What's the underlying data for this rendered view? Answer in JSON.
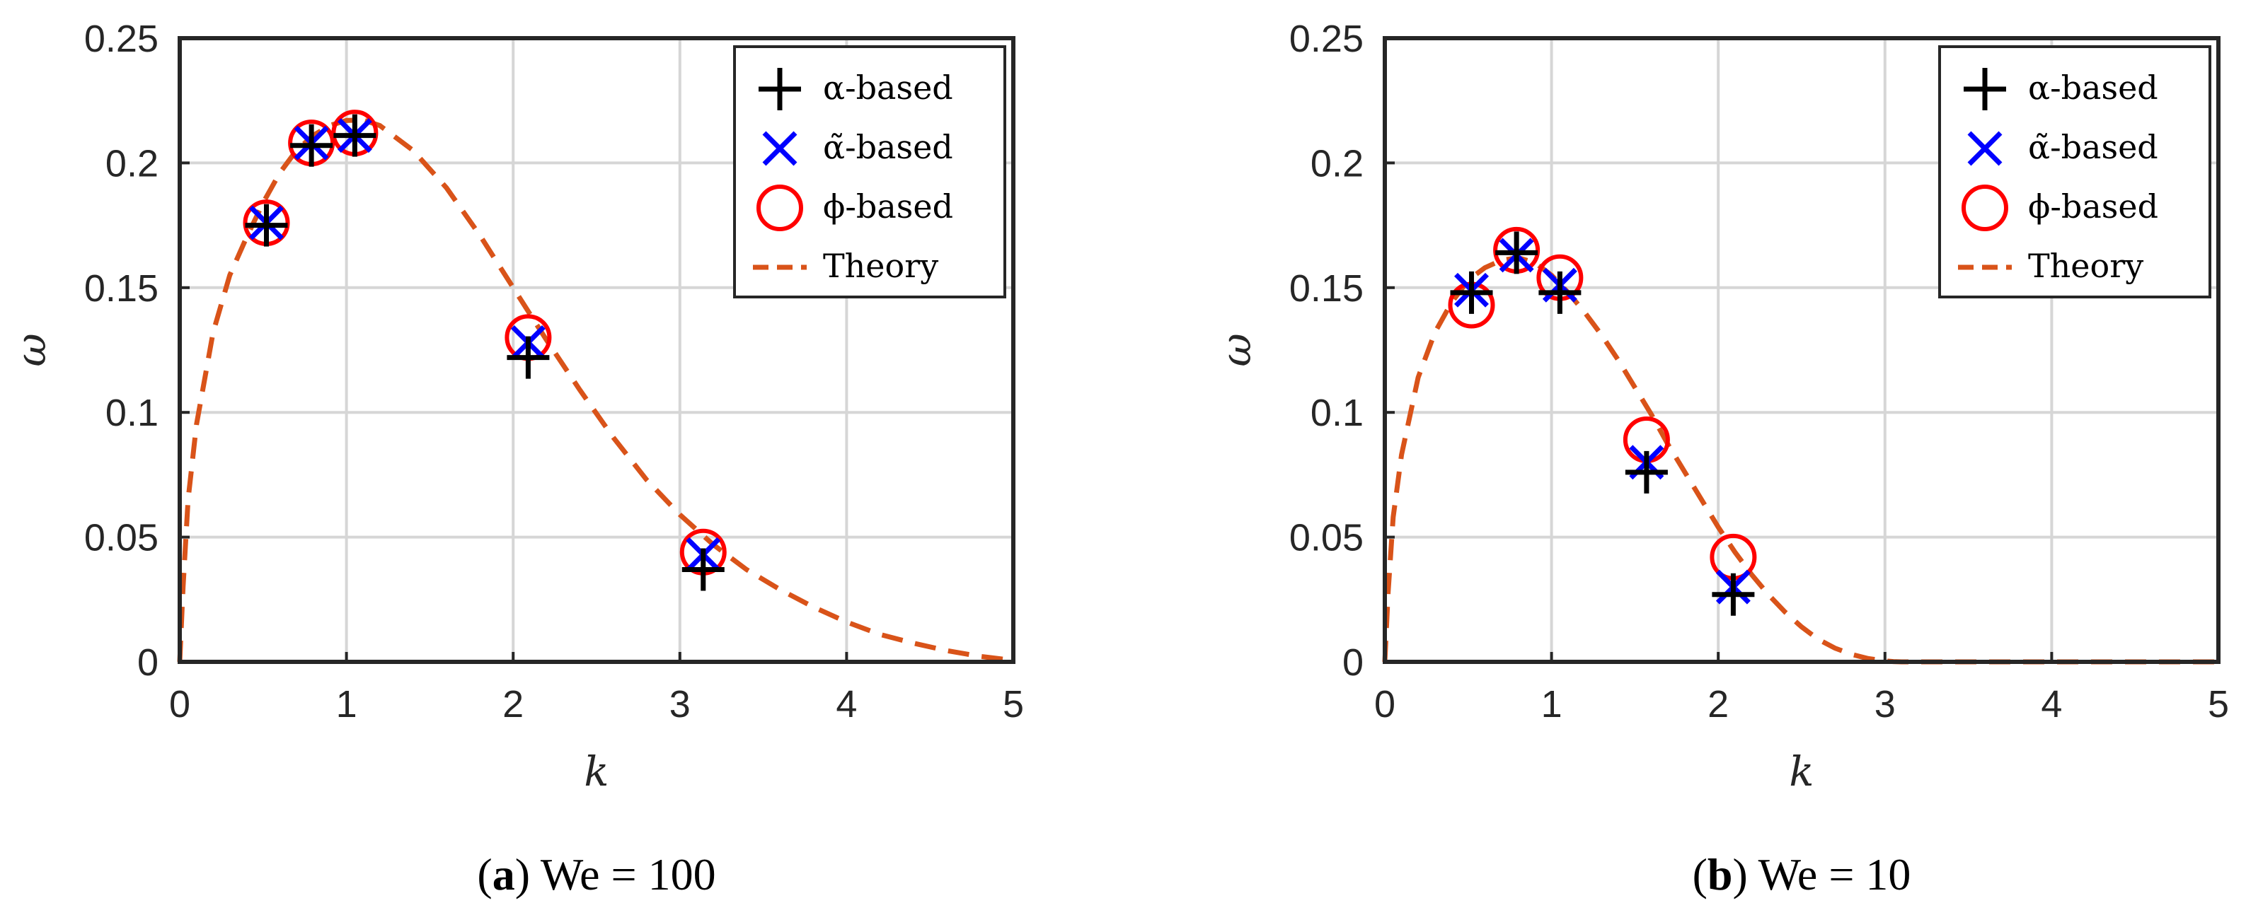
{
  "chart_data": [
    {
      "type": "scatter",
      "xlabel": "k",
      "ylabel": "ω",
      "xlim": [
        0,
        5
      ],
      "ylim": [
        0,
        0.25
      ],
      "xticks": [
        "0",
        "1",
        "2",
        "3",
        "4",
        "5"
      ],
      "yticks": [
        "0",
        "0.05",
        "0.1",
        "0.15",
        "0.2",
        "0.25"
      ],
      "grid": true,
      "legend_position": "top-right",
      "caption_label": "a",
      "caption_text": "We = 100",
      "series": [
        {
          "name": "α-based",
          "marker": "plus",
          "color": "#000000",
          "x": [
            0.52,
            0.79,
            1.05,
            2.09,
            3.14
          ],
          "y": [
            0.175,
            0.207,
            0.211,
            0.122,
            0.037
          ]
        },
        {
          "name": "α̃-based",
          "marker": "x",
          "color": "#0000ff",
          "x": [
            0.52,
            0.79,
            1.05,
            2.09,
            3.14
          ],
          "y": [
            0.176,
            0.208,
            0.211,
            0.128,
            0.043
          ]
        },
        {
          "name": "ϕ-based",
          "marker": "circle",
          "color": "#ff0000",
          "x": [
            0.52,
            0.79,
            1.05,
            2.09,
            3.14
          ],
          "y": [
            0.176,
            0.208,
            0.212,
            0.13,
            0.044
          ]
        },
        {
          "name": "Theory",
          "line": "dashed",
          "color": "#d95319",
          "x": [
            0,
            0.02,
            0.05,
            0.1,
            0.2,
            0.3,
            0.4,
            0.5,
            0.6,
            0.7,
            0.8,
            0.9,
            1.0,
            1.1,
            1.2,
            1.4,
            1.6,
            1.8,
            2.0,
            2.2,
            2.4,
            2.6,
            2.8,
            3.0,
            3.2,
            3.4,
            3.6,
            3.8,
            4.0,
            4.2,
            4.4,
            4.6,
            4.8,
            4.95
          ],
          "y": [
            0,
            0.03,
            0.065,
            0.095,
            0.132,
            0.155,
            0.17,
            0.184,
            0.196,
            0.205,
            0.211,
            0.215,
            0.217,
            0.2172,
            0.215,
            0.205,
            0.19,
            0.171,
            0.15,
            0.129,
            0.109,
            0.09,
            0.073,
            0.059,
            0.047,
            0.037,
            0.029,
            0.022,
            0.016,
            0.011,
            0.0075,
            0.0045,
            0.0022,
            0.001
          ]
        }
      ]
    },
    {
      "type": "scatter",
      "xlabel": "k",
      "ylabel": "ω",
      "xlim": [
        0,
        5
      ],
      "ylim": [
        0,
        0.25
      ],
      "xticks": [
        "0",
        "1",
        "2",
        "3",
        "4",
        "5"
      ],
      "yticks": [
        "0",
        "0.05",
        "0.1",
        "0.15",
        "0.2",
        "0.25"
      ],
      "grid": true,
      "legend_position": "top-right",
      "caption_label": "b",
      "caption_text": "We = 10",
      "series": [
        {
          "name": "α-based",
          "marker": "plus",
          "color": "#000000",
          "x": [
            0.52,
            0.79,
            1.05,
            1.57,
            2.09
          ],
          "y": [
            0.148,
            0.164,
            0.148,
            0.076,
            0.027
          ]
        },
        {
          "name": "α̃-based",
          "marker": "x",
          "color": "#0000ff",
          "x": [
            0.52,
            0.79,
            1.05,
            1.57,
            2.09
          ],
          "y": [
            0.149,
            0.163,
            0.151,
            0.08,
            0.03
          ]
        },
        {
          "name": "ϕ-based",
          "marker": "circle",
          "color": "#ff0000",
          "x": [
            0.52,
            0.79,
            1.05,
            1.57,
            2.09
          ],
          "y": [
            0.143,
            0.165,
            0.154,
            0.089,
            0.042
          ]
        },
        {
          "name": "Theory",
          "line": "dashed",
          "color": "#d95319",
          "x": [
            0,
            0.02,
            0.05,
            0.1,
            0.2,
            0.3,
            0.4,
            0.5,
            0.6,
            0.7,
            0.8,
            0.9,
            1.0,
            1.1,
            1.2,
            1.3,
            1.4,
            1.5,
            1.6,
            1.7,
            1.8,
            1.9,
            2.0,
            2.1,
            2.2,
            2.3,
            2.4,
            2.5,
            2.6,
            2.7,
            2.8,
            2.9,
            3.0,
            3.05,
            3.1,
            3.16,
            3.5,
            4.0,
            4.5,
            5.0
          ],
          "y": [
            0,
            0.028,
            0.058,
            0.083,
            0.114,
            0.132,
            0.144,
            0.153,
            0.158,
            0.161,
            0.162,
            0.16,
            0.155,
            0.148,
            0.14,
            0.131,
            0.121,
            0.11,
            0.099,
            0.087,
            0.076,
            0.065,
            0.054,
            0.044,
            0.035,
            0.027,
            0.02,
            0.014,
            0.009,
            0.0055,
            0.003,
            0.0013,
            0.0004,
            0.0001,
            0,
            0,
            0,
            0,
            0,
            0
          ]
        }
      ]
    }
  ]
}
